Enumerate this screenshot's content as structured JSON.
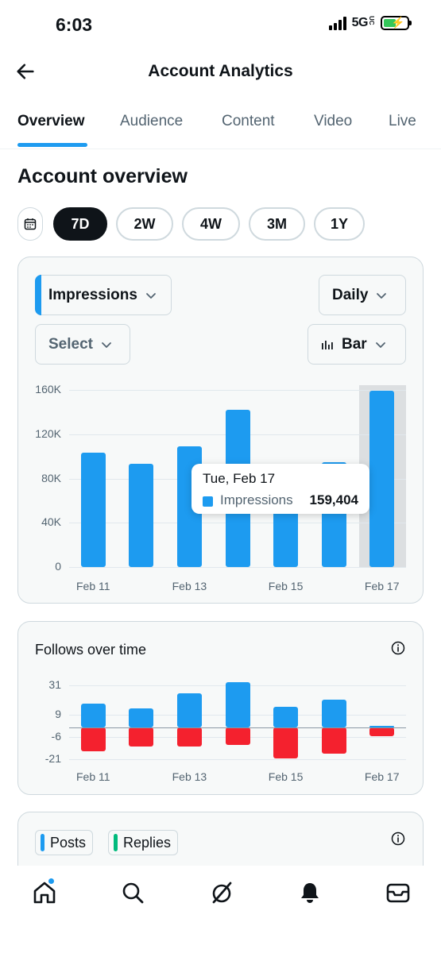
{
  "status_bar": {
    "time": "6:03",
    "network": "5G",
    "network_suffix": "UC"
  },
  "header": {
    "title": "Account Analytics"
  },
  "tabs": [
    {
      "label": "Overview",
      "active": true
    },
    {
      "label": "Audience",
      "active": false
    },
    {
      "label": "Content",
      "active": false
    },
    {
      "label": "Video",
      "active": false
    },
    {
      "label": "Live",
      "active": false
    }
  ],
  "section_title": "Account overview",
  "date_ranges": [
    {
      "label": "7D",
      "active": true
    },
    {
      "label": "2W",
      "active": false
    },
    {
      "label": "4W",
      "active": false
    },
    {
      "label": "3M",
      "active": false
    },
    {
      "label": "1Y",
      "active": false
    }
  ],
  "impressions_card": {
    "metric_select": "Impressions",
    "interval_select": "Daily",
    "compare_select": "Select",
    "chart_type_select": "Bar",
    "tooltip": {
      "date": "Tue, Feb 17",
      "series": "Impressions",
      "value": "159,404"
    }
  },
  "follows_card": {
    "title": "Follows over time"
  },
  "posts_card": {
    "legend": [
      "Posts",
      "Replies"
    ]
  },
  "colors": {
    "accent": "#1d9bf0",
    "negative": "#f4212e",
    "replies": "#00ba7c",
    "text": "#0f1419",
    "muted": "#536471"
  },
  "chart_data": [
    {
      "type": "bar",
      "categories": [
        "Feb 11",
        "Feb 12",
        "Feb 13",
        "Feb 14",
        "Feb 15",
        "Feb 16",
        "Feb 17"
      ],
      "x_tick_labels": [
        "Feb 11",
        "Feb 13",
        "Feb 15",
        "Feb 17"
      ],
      "series": [
        {
          "name": "Impressions",
          "values": [
            103000,
            93000,
            109000,
            142000,
            85000,
            95000,
            159404
          ]
        }
      ],
      "y_ticks": [
        "0",
        "40K",
        "80K",
        "120K",
        "160K"
      ],
      "y_tick_values": [
        0,
        40000,
        80000,
        120000,
        160000
      ],
      "ylim": [
        0,
        160000
      ],
      "highlighted_category": "Feb 17",
      "grid": true
    },
    {
      "type": "bar",
      "title": "Follows over time",
      "categories": [
        "Feb 11",
        "Feb 12",
        "Feb 13",
        "Feb 14",
        "Feb 15",
        "Feb 16",
        "Feb 17"
      ],
      "x_tick_labels": [
        "Feb 11",
        "Feb 13",
        "Feb 15",
        "Feb 17"
      ],
      "positive_values": [
        16,
        13,
        23,
        31,
        14,
        19,
        1
      ],
      "negative_values": [
        -16,
        -13,
        -13,
        -12,
        -21,
        -18,
        -6
      ],
      "y_ticks": [
        "31",
        "9",
        "-6",
        "-21"
      ],
      "y_tick_values": [
        31,
        9,
        -6,
        -21
      ],
      "grid": true
    }
  ]
}
